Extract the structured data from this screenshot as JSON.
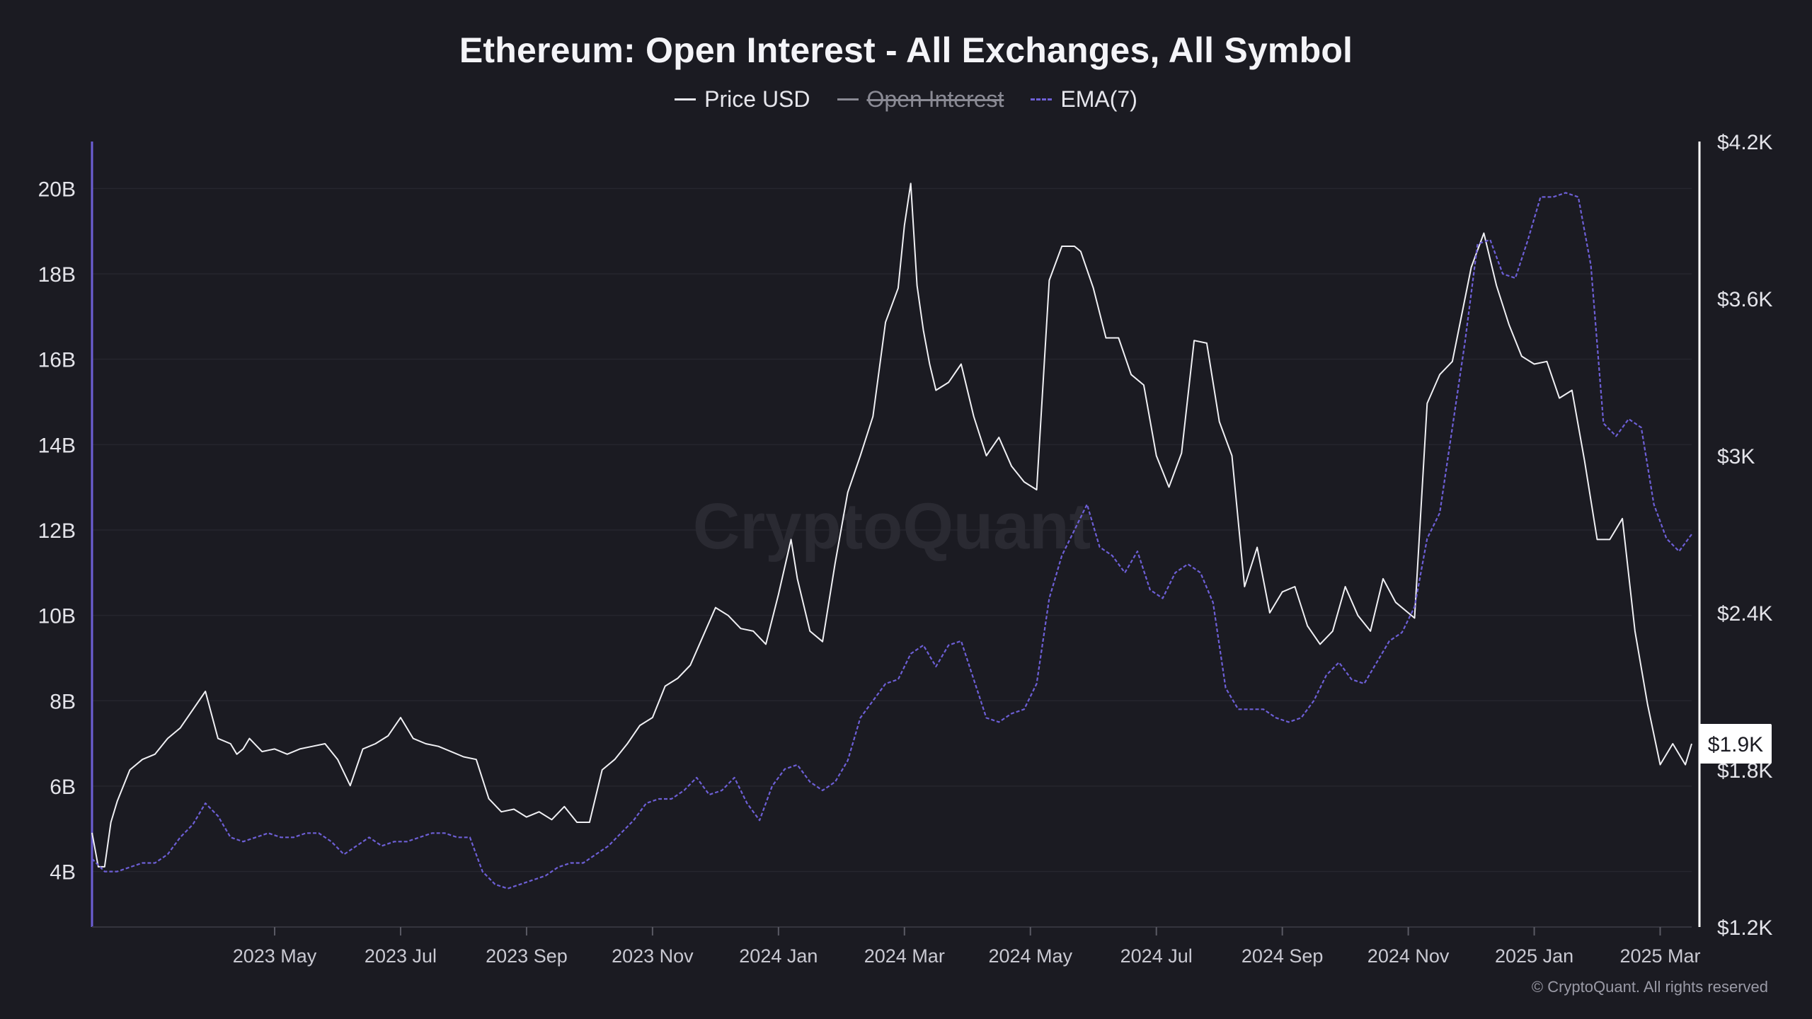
{
  "chart_data": {
    "type": "line",
    "title": "Ethereum: Open Interest - All Exchanges, All Symbol",
    "watermark": "CryptoQuant",
    "copyright": "© CryptoQuant. All rights reserved",
    "legend": [
      {
        "name": "Price USD",
        "color": "#e8e8ee",
        "style": "solid",
        "enabled": true
      },
      {
        "name": "Open Interest",
        "color": "#8a8a94",
        "style": "solid",
        "enabled": false
      },
      {
        "name": "EMA(7)",
        "color": "#6d5fd6",
        "style": "dashed",
        "enabled": true
      }
    ],
    "x_ticks": [
      "2023 May",
      "2023 Jul",
      "2023 Sep",
      "2023 Nov",
      "2024 Jan",
      "2024 Mar",
      "2024 May",
      "2024 Jul",
      "2024 Sep",
      "2024 Nov",
      "2025 Jan",
      "2025 Mar"
    ],
    "x_tick_positions": [
      1.0,
      3.0,
      5.0,
      7.0,
      9.0,
      11.0,
      13.0,
      15.0,
      17.0,
      19.0,
      21.0,
      23.0
    ],
    "xlim": [
      -1.9,
      23.5
    ],
    "left_axis": {
      "ticks": [
        "4B",
        "6B",
        "8B",
        "10B",
        "12B",
        "14B",
        "16B",
        "18B",
        "20B"
      ],
      "values": [
        4,
        6,
        8,
        10,
        12,
        14,
        16,
        18,
        20
      ],
      "range": [
        2.7,
        21.1
      ]
    },
    "right_axis": {
      "ticks": [
        "$1.2K",
        "$1.8K",
        "$2.4K",
        "$3K",
        "$3.6K",
        "$4.2K"
      ],
      "values": [
        1200,
        1800,
        2400,
        3000,
        3600,
        4200
      ],
      "range": [
        1200,
        4200
      ],
      "current_label": "$1.9K",
      "current_value": 1900
    },
    "series": [
      {
        "name": "Price USD",
        "axis": "right",
        "x": [
          -1.9,
          -1.8,
          -1.7,
          -1.6,
          -1.5,
          -1.3,
          -1.1,
          -0.9,
          -0.7,
          -0.5,
          -0.3,
          -0.1,
          0.1,
          0.3,
          0.4,
          0.5,
          0.6,
          0.8,
          1.0,
          1.2,
          1.4,
          1.6,
          1.8,
          2.0,
          2.2,
          2.4,
          2.6,
          2.8,
          3.0,
          3.2,
          3.4,
          3.6,
          3.8,
          4.0,
          4.2,
          4.4,
          4.6,
          4.8,
          5.0,
          5.2,
          5.4,
          5.6,
          5.8,
          6.0,
          6.2,
          6.4,
          6.6,
          6.8,
          7.0,
          7.2,
          7.4,
          7.6,
          7.8,
          8.0,
          8.2,
          8.4,
          8.6,
          8.8,
          9.0,
          9.2,
          9.3,
          9.5,
          9.7,
          9.9,
          10.1,
          10.3,
          10.5,
          10.7,
          10.9,
          11.0,
          11.1,
          11.2,
          11.3,
          11.4,
          11.5,
          11.7,
          11.9,
          12.1,
          12.3,
          12.5,
          12.7,
          12.9,
          13.1,
          13.3,
          13.5,
          13.7,
          13.8,
          14.0,
          14.2,
          14.4,
          14.6,
          14.8,
          15.0,
          15.2,
          15.4,
          15.6,
          15.8,
          16.0,
          16.2,
          16.4,
          16.6,
          16.8,
          17.0,
          17.2,
          17.4,
          17.6,
          17.8,
          18.0,
          18.2,
          18.4,
          18.6,
          18.8,
          19.0,
          19.1,
          19.3,
          19.5,
          19.7,
          19.9,
          20.0,
          20.2,
          20.4,
          20.6,
          20.8,
          21.0,
          21.2,
          21.4,
          21.6,
          21.8,
          22.0,
          22.2,
          22.4,
          22.6,
          22.8,
          23.0,
          23.2,
          23.4,
          23.5
        ],
        "y": [
          1560,
          1430,
          1430,
          1600,
          1680,
          1800,
          1840,
          1860,
          1920,
          1960,
          2030,
          2100,
          1920,
          1900,
          1860,
          1880,
          1920,
          1870,
          1880,
          1860,
          1880,
          1890,
          1900,
          1840,
          1740,
          1880,
          1900,
          1930,
          2000,
          1920,
          1900,
          1890,
          1870,
          1850,
          1840,
          1690,
          1640,
          1650,
          1620,
          1640,
          1610,
          1660,
          1600,
          1600,
          1800,
          1840,
          1900,
          1970,
          2000,
          2120,
          2150,
          2200,
          2310,
          2420,
          2390,
          2340,
          2330,
          2280,
          2470,
          2680,
          2530,
          2330,
          2290,
          2590,
          2860,
          3000,
          3150,
          3510,
          3640,
          3880,
          4040,
          3650,
          3480,
          3350,
          3250,
          3280,
          3350,
          3150,
          3000,
          3070,
          2960,
          2900,
          2870,
          3670,
          3800,
          3800,
          3780,
          3640,
          3450,
          3450,
          3310,
          3270,
          3000,
          2880,
          3010,
          3440,
          3430,
          3130,
          3000,
          2500,
          2650,
          2400,
          2480,
          2500,
          2350,
          2280,
          2330,
          2500,
          2390,
          2330,
          2530,
          2440,
          2400,
          2380,
          3200,
          3310,
          3360,
          3600,
          3720,
          3850,
          3650,
          3500,
          3380,
          3350,
          3360,
          3220,
          3250,
          2980,
          2680,
          2680,
          2760,
          2330,
          2050,
          1820,
          1900,
          1820,
          1900
        ]
      },
      {
        "name": "EMA(7)",
        "axis": "left",
        "x": [
          -1.9,
          -1.7,
          -1.5,
          -1.3,
          -1.1,
          -0.9,
          -0.7,
          -0.5,
          -0.3,
          -0.1,
          0.1,
          0.3,
          0.5,
          0.7,
          0.9,
          1.1,
          1.3,
          1.5,
          1.7,
          1.9,
          2.1,
          2.3,
          2.5,
          2.7,
          2.9,
          3.1,
          3.3,
          3.5,
          3.7,
          3.9,
          4.1,
          4.3,
          4.5,
          4.7,
          4.9,
          5.1,
          5.3,
          5.5,
          5.7,
          5.9,
          6.1,
          6.3,
          6.5,
          6.7,
          6.9,
          7.1,
          7.3,
          7.5,
          7.7,
          7.9,
          8.1,
          8.3,
          8.5,
          8.7,
          8.9,
          9.1,
          9.3,
          9.5,
          9.7,
          9.9,
          10.1,
          10.3,
          10.5,
          10.7,
          10.9,
          11.1,
          11.3,
          11.5,
          11.7,
          11.9,
          12.1,
          12.3,
          12.5,
          12.7,
          12.9,
          13.1,
          13.3,
          13.5,
          13.7,
          13.9,
          14.1,
          14.3,
          14.5,
          14.7,
          14.9,
          15.1,
          15.3,
          15.5,
          15.7,
          15.9,
          16.1,
          16.3,
          16.5,
          16.7,
          16.9,
          17.1,
          17.3,
          17.5,
          17.7,
          17.9,
          18.1,
          18.3,
          18.5,
          18.7,
          18.9,
          19.1,
          19.3,
          19.5,
          19.7,
          19.9,
          20.1,
          20.3,
          20.5,
          20.7,
          20.9,
          21.1,
          21.3,
          21.5,
          21.7,
          21.9,
          22.1,
          22.3,
          22.5,
          22.7,
          22.9,
          23.1,
          23.3,
          23.5
        ],
        "y": [
          4.3,
          4.0,
          4.0,
          4.1,
          4.2,
          4.2,
          4.4,
          4.8,
          5.1,
          5.6,
          5.3,
          4.8,
          4.7,
          4.8,
          4.9,
          4.8,
          4.8,
          4.9,
          4.9,
          4.7,
          4.4,
          4.6,
          4.8,
          4.6,
          4.7,
          4.7,
          4.8,
          4.9,
          4.9,
          4.8,
          4.8,
          4.0,
          3.7,
          3.6,
          3.7,
          3.8,
          3.9,
          4.1,
          4.2,
          4.2,
          4.4,
          4.6,
          4.9,
          5.2,
          5.6,
          5.7,
          5.7,
          5.9,
          6.2,
          5.8,
          5.9,
          6.2,
          5.6,
          5.2,
          6.0,
          6.4,
          6.5,
          6.1,
          5.9,
          6.1,
          6.6,
          7.6,
          8.0,
          8.4,
          8.5,
          9.1,
          9.3,
          8.8,
          9.3,
          9.4,
          8.5,
          7.6,
          7.5,
          7.7,
          7.8,
          8.4,
          10.4,
          11.4,
          12.0,
          12.6,
          11.6,
          11.4,
          11.0,
          11.5,
          10.6,
          10.4,
          11.0,
          11.2,
          11.0,
          10.3,
          8.3,
          7.8,
          7.8,
          7.8,
          7.6,
          7.5,
          7.6,
          8.0,
          8.6,
          8.9,
          8.5,
          8.4,
          8.9,
          9.4,
          9.6,
          10.2,
          11.8,
          12.4,
          14.4,
          16.4,
          18.7,
          18.8,
          18.0,
          17.9,
          18.8,
          19.8,
          19.8,
          19.9,
          19.8,
          18.2,
          14.5,
          14.2,
          14.6,
          14.4,
          12.6,
          11.8,
          11.5,
          11.9
        ]
      }
    ]
  }
}
